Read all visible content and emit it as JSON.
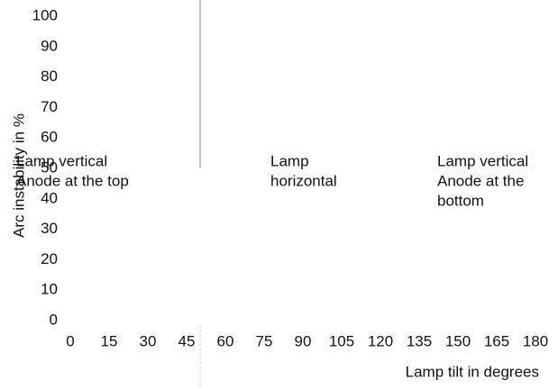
{
  "chart_data": {
    "type": "line",
    "x_label": "Lamp tilt in degrees",
    "y_label": "Arc instability in %",
    "xlim": [
      0,
      180
    ],
    "xticks": [
      0,
      15,
      30,
      45,
      60,
      75,
      90,
      105,
      120,
      135,
      150,
      165,
      180
    ],
    "ylim": [
      0,
      100
    ],
    "yticks": [
      0,
      10,
      20,
      30,
      40,
      50,
      60,
      70,
      80,
      90,
      100
    ],
    "annotations": [
      [
        "Lamp vertical",
        "Anode at the top"
      ],
      [
        "Lamp",
        "horizontal"
      ],
      [
        "Lamp vertical",
        "Anode at the",
        "bottom"
      ]
    ]
  }
}
